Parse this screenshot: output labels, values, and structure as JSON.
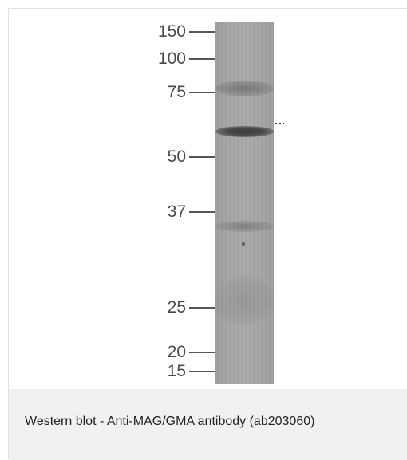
{
  "markers": [
    {
      "label": "150",
      "kda": 150
    },
    {
      "label": "100",
      "kda": 100
    },
    {
      "label": "75",
      "kda": 75
    },
    {
      "label": "50",
      "kda": 50
    },
    {
      "label": "37",
      "kda": 37
    },
    {
      "label": "25",
      "kda": 25
    },
    {
      "label": "20",
      "kda": 20
    },
    {
      "label": "15",
      "kda": 15
    }
  ],
  "caption": "Western blot - Anti-MAG/GMA antibody (ab203060)"
}
